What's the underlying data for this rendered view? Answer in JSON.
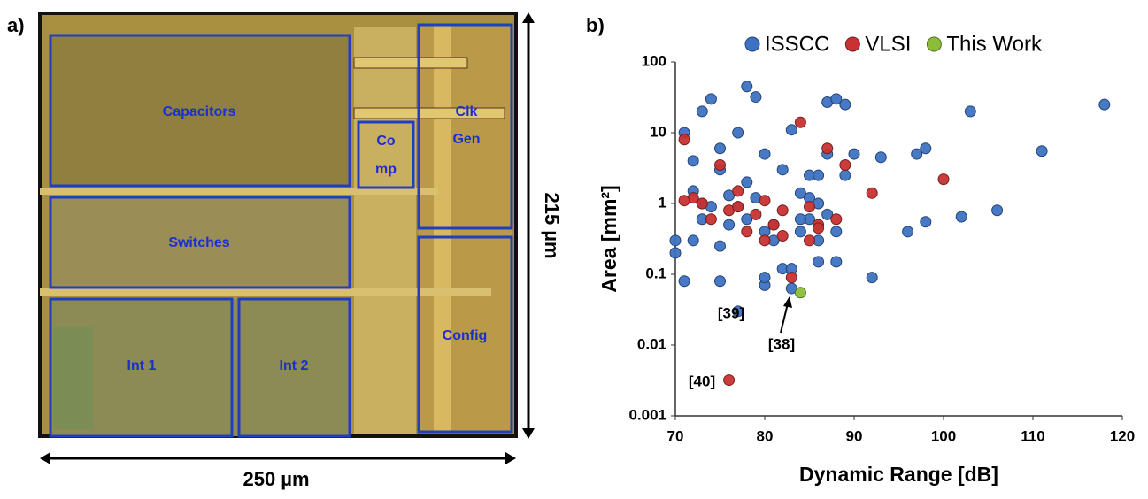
{
  "panel_a": {
    "label": "a)",
    "blocks": [
      {
        "lines": [
          "Capacitors"
        ]
      },
      {
        "lines": [
          "Co",
          "mp"
        ]
      },
      {
        "lines": [
          "Clk",
          "Gen"
        ]
      },
      {
        "lines": [
          "Switches"
        ]
      },
      {
        "lines": [
          "Int 1"
        ]
      },
      {
        "lines": [
          "Int 2"
        ]
      },
      {
        "lines": [
          "Config"
        ]
      }
    ],
    "width_label": "250 µm",
    "height_label": "215 µm"
  },
  "chart_data": {
    "type": "scatter",
    "panel_label": "b)",
    "x_label": "Dynamic Range [dB]",
    "y_label": "Area [mm²]",
    "xlim": [
      70,
      120
    ],
    "xticks": [
      70,
      80,
      90,
      100,
      110,
      120
    ],
    "ylim": [
      0.001,
      100
    ],
    "yticks": [
      0.001,
      0.01,
      0.1,
      1,
      10,
      100
    ],
    "y_scale": "log",
    "grid": false,
    "legend": "top",
    "annotations": [
      "[39]",
      "[38]",
      "[40]"
    ],
    "series": [
      {
        "name": "ISSCC",
        "color": "#3d72c2",
        "x": [
          71,
          72,
          73,
          74,
          75,
          75,
          77,
          78,
          79,
          80,
          82,
          83,
          84,
          85,
          86,
          87,
          88,
          89,
          90,
          93,
          97,
          98,
          103,
          111,
          118,
          70,
          70,
          71,
          72,
          73,
          74,
          75,
          76,
          77,
          78,
          79,
          80,
          81,
          82,
          83,
          83,
          80,
          80,
          77,
          75,
          85,
          86,
          87,
          88,
          89,
          92,
          96,
          98,
          102,
          106,
          88,
          84,
          86,
          72,
          73,
          76,
          78,
          81,
          84,
          85,
          86,
          87
        ],
        "values": [
          10,
          1.5,
          20,
          30,
          3,
          6,
          10,
          45,
          32,
          5,
          3,
          11,
          1.4,
          2.5,
          1,
          27,
          30,
          25,
          5,
          4.5,
          5,
          6,
          20,
          5.5,
          25,
          0.2,
          0.3,
          0.08,
          0.3,
          0.6,
          0.9,
          0.25,
          0.5,
          0.9,
          2,
          1.2,
          0.4,
          0.5,
          0.12,
          0.12,
          0.063,
          0.07,
          0.09,
          0.03,
          0.08,
          0.6,
          0.3,
          0.7,
          0.4,
          2.5,
          0.09,
          0.4,
          0.55,
          0.65,
          0.8,
          0.15,
          0.4,
          0.15,
          4,
          1,
          1.3,
          0.6,
          0.3,
          0.6,
          1.2,
          2.5,
          5
        ]
      },
      {
        "name": "VLSI",
        "color": "#c83232",
        "x": [
          71,
          72,
          73,
          75,
          76,
          77,
          78,
          79,
          80,
          80,
          82,
          83,
          84,
          85,
          86,
          87,
          89,
          92,
          100,
          76,
          71,
          74,
          82,
          86,
          88,
          77,
          81,
          85
        ],
        "values": [
          8,
          1.2,
          1,
          3.5,
          0.8,
          1.5,
          0.4,
          0.7,
          1.1,
          0.3,
          0.35,
          0.09,
          14,
          0.9,
          0.5,
          6,
          3.5,
          1.4,
          2.2,
          0.0032,
          1.1,
          0.6,
          0.8,
          0.45,
          0.6,
          0.9,
          0.5,
          0.3
        ]
      },
      {
        "name": "This Work",
        "color": "#8cbd3a",
        "x": [
          84
        ],
        "values": [
          0.055
        ]
      }
    ]
  }
}
